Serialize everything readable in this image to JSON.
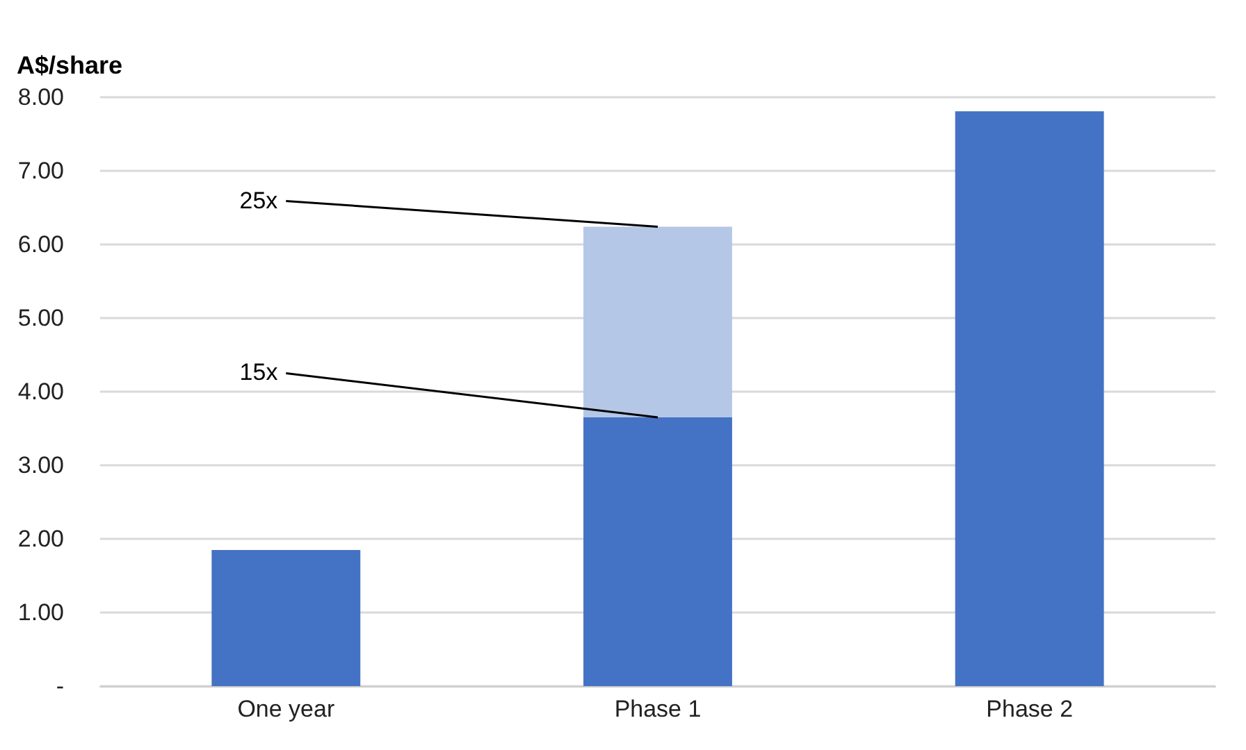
{
  "chart_data": {
    "type": "bar",
    "ylabel": "A$/share",
    "categories": [
      "One year",
      "Phase 1",
      "Phase 2"
    ],
    "stacked": true,
    "series": [
      {
        "color": "#4472c4",
        "values": [
          1.85,
          3.65,
          7.81
        ]
      },
      {
        "color": "#b4c7e7",
        "values": [
          null,
          2.59,
          null
        ]
      }
    ],
    "ylim": [
      0,
      8
    ],
    "yticks": [
      {
        "value": 0,
        "label": "-"
      },
      {
        "value": 1,
        "label": "1.00"
      },
      {
        "value": 2,
        "label": "2.00"
      },
      {
        "value": 3,
        "label": "3.00"
      },
      {
        "value": 4,
        "label": "4.00"
      },
      {
        "value": 5,
        "label": "5.00"
      },
      {
        "value": 6,
        "label": "6.00"
      },
      {
        "value": 7,
        "label": "7.00"
      },
      {
        "value": 8,
        "label": "8.00"
      }
    ],
    "grid": "y",
    "annotations": [
      {
        "text": "25x",
        "x": "Phase 1",
        "y": 6.24
      },
      {
        "text": "15x",
        "x": "Phase 1",
        "y": 3.65
      }
    ]
  }
}
